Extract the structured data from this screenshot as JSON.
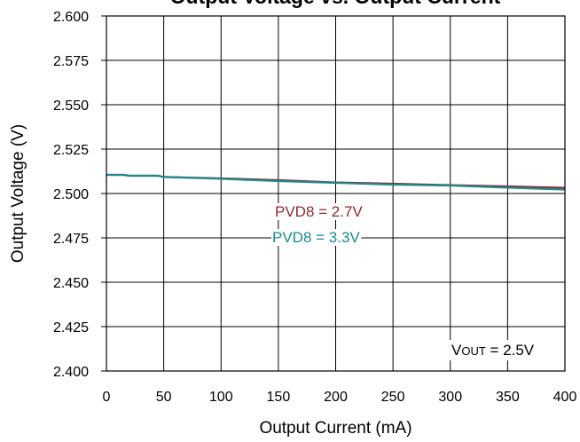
{
  "chart_data": {
    "type": "line",
    "title": "Output Voltage vs. Output Current",
    "xlabel": "Output Current (mA)",
    "ylabel": "Output Voltage (V)",
    "xlim": [
      0,
      400
    ],
    "ylim": [
      2.4,
      2.6
    ],
    "x_ticks": [
      "0",
      "50",
      "100",
      "150",
      "200",
      "250",
      "300",
      "350",
      "400"
    ],
    "y_ticks": [
      "2.400",
      "2.425",
      "2.450",
      "2.475",
      "2.500",
      "2.525",
      "2.550",
      "2.575",
      "2.600"
    ],
    "grid": true,
    "series": [
      {
        "name": "PVD8 = 2.7V",
        "color": "#8b2a35",
        "x": [
          0,
          15,
          20,
          45,
          50,
          100,
          150,
          200,
          250,
          300,
          350,
          400
        ],
        "y": [
          2.5105,
          2.5105,
          2.51,
          2.51,
          2.5093,
          2.5085,
          2.5075,
          2.5062,
          2.5055,
          2.5047,
          2.504,
          2.5032
        ]
      },
      {
        "name": "PVD8 = 3.3V",
        "color": "#1f8a8a",
        "x": [
          0,
          15,
          20,
          45,
          50,
          100,
          150,
          200,
          250,
          300,
          350,
          400
        ],
        "y": [
          2.5105,
          2.5105,
          2.51,
          2.51,
          2.5093,
          2.5083,
          2.507,
          2.506,
          2.505,
          2.5045,
          2.5033,
          2.5022
        ]
      }
    ],
    "annotations": {
      "vout_main": "V",
      "vout_sub": "OUT",
      "vout_rest": " = 2.5V"
    }
  }
}
